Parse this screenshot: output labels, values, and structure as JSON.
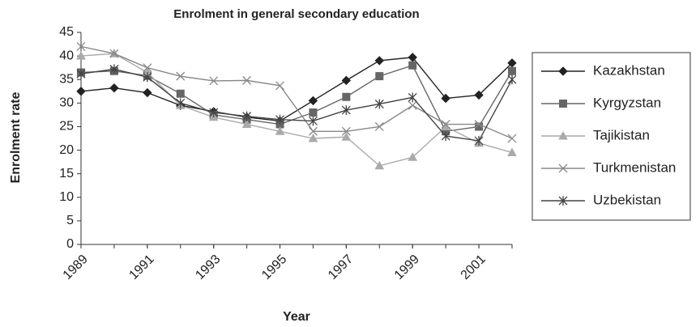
{
  "chart_data": {
    "type": "line",
    "title": "Enrolment in general secondary education",
    "x_label": "Year",
    "y_label": "Enrolment rate",
    "x": [
      1989,
      1990,
      1991,
      1992,
      1993,
      1994,
      1995,
      1996,
      1997,
      1998,
      1999,
      2000,
      2001,
      2002
    ],
    "xlim": [
      1989,
      2002
    ],
    "xticks": [
      1989,
      1991,
      1993,
      1995,
      1997,
      1999,
      2001
    ],
    "ylim": [
      0,
      45
    ],
    "yticks": [
      0,
      5,
      10,
      15,
      20,
      25,
      30,
      35,
      40,
      45
    ],
    "legend": "right",
    "series": [
      {
        "name": "Kazakhstan",
        "color": "#222222",
        "marker": "diamond",
        "values": [
          32.5,
          33.2,
          32.2,
          29.5,
          28.2,
          27,
          26.2,
          30.5,
          34.8,
          39,
          39.7,
          31,
          31.7,
          38.5
        ]
      },
      {
        "name": "Kyrgyzstan",
        "color": "#666666",
        "marker": "square",
        "values": [
          36.5,
          36.8,
          35.8,
          32,
          27.5,
          26.5,
          25.5,
          28,
          31.3,
          35.7,
          38,
          24,
          25,
          36.8
        ]
      },
      {
        "name": "Tajikistan",
        "color": "#aaaaaa",
        "marker": "triangle",
        "values": [
          40,
          40.5,
          36.5,
          29.5,
          27,
          25.5,
          24,
          22.5,
          22.8,
          16.7,
          18.5,
          25,
          21.5,
          19.5
        ]
      },
      {
        "name": "Turkmenistan",
        "color": "#888888",
        "marker": "x",
        "values": [
          42,
          40.5,
          37.5,
          35.7,
          34.7,
          34.8,
          33.7,
          24,
          24,
          25,
          29.5,
          25.5,
          25.5,
          22.5
        ]
      },
      {
        "name": "Uzbekistan",
        "color": "#444444",
        "marker": "star",
        "values": [
          36.2,
          37.2,
          35.5,
          30,
          28,
          27.2,
          26.5,
          26.2,
          28.5,
          29.8,
          31.2,
          23,
          22,
          35
        ]
      }
    ]
  }
}
